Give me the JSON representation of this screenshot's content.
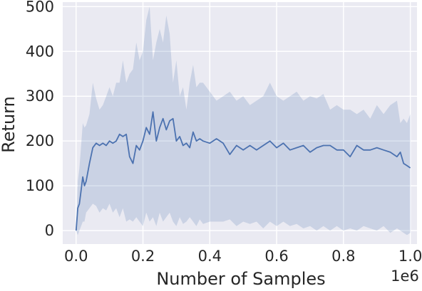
{
  "chart_data": {
    "type": "line",
    "title": "",
    "xlabel": "Number of Samples",
    "ylabel": "Return",
    "x_offset_label": "1e6",
    "xlim": [
      -0.04,
      1.02
    ],
    "ylim": [
      -30,
      510
    ],
    "x_ticks": [
      0.0,
      0.2,
      0.4,
      0.6,
      0.8,
      1.0
    ],
    "x_tick_labels": [
      "0.0",
      "0.2",
      "0.4",
      "0.6",
      "0.8",
      "1.0"
    ],
    "y_ticks": [
      0,
      100,
      200,
      300,
      400,
      500
    ],
    "y_tick_labels": [
      "0",
      "100",
      "200",
      "300",
      "400",
      "500"
    ],
    "grid": true,
    "legend": "none",
    "colors": {
      "background": "#eaeaf2",
      "grid": "#ffffff",
      "line": "#4c72b0",
      "band": "#4c72b0"
    },
    "series": [
      {
        "x": [
          0.0,
          0.005,
          0.01,
          0.015,
          0.02,
          0.025,
          0.03,
          0.04,
          0.05,
          0.06,
          0.07,
          0.08,
          0.09,
          0.1,
          0.11,
          0.12,
          0.13,
          0.14,
          0.15,
          0.16,
          0.17,
          0.18,
          0.19,
          0.2,
          0.21,
          0.22,
          0.23,
          0.24,
          0.25,
          0.26,
          0.27,
          0.28,
          0.29,
          0.3,
          0.31,
          0.32,
          0.33,
          0.34,
          0.35,
          0.36,
          0.37,
          0.38,
          0.4,
          0.42,
          0.44,
          0.46,
          0.48,
          0.5,
          0.52,
          0.54,
          0.56,
          0.58,
          0.6,
          0.62,
          0.64,
          0.66,
          0.68,
          0.7,
          0.72,
          0.74,
          0.76,
          0.78,
          0.8,
          0.82,
          0.84,
          0.86,
          0.88,
          0.9,
          0.92,
          0.94,
          0.96,
          0.97,
          0.98,
          0.99,
          1.0
        ],
        "y": [
          0,
          50,
          60,
          90,
          120,
          100,
          110,
          150,
          185,
          195,
          190,
          195,
          190,
          200,
          195,
          200,
          215,
          210,
          215,
          165,
          150,
          190,
          180,
          200,
          230,
          215,
          265,
          200,
          230,
          250,
          225,
          245,
          250,
          200,
          210,
          190,
          195,
          185,
          220,
          200,
          205,
          200,
          195,
          205,
          195,
          170,
          190,
          180,
          190,
          180,
          190,
          200,
          185,
          195,
          180,
          185,
          190,
          175,
          185,
          190,
          190,
          180,
          180,
          165,
          190,
          180,
          180,
          185,
          180,
          175,
          165,
          175,
          150,
          145,
          140
        ],
        "upper": [
          0,
          110,
          140,
          190,
          240,
          230,
          235,
          260,
          330,
          295,
          270,
          280,
          300,
          320,
          300,
          330,
          330,
          380,
          330,
          350,
          360,
          420,
          380,
          400,
          470,
          500,
          380,
          420,
          450,
          420,
          480,
          440,
          330,
          380,
          300,
          320,
          270,
          330,
          370,
          320,
          330,
          330,
          310,
          290,
          300,
          310,
          290,
          300,
          280,
          290,
          300,
          330,
          300,
          290,
          300,
          310,
          290,
          300,
          295,
          305,
          270,
          280,
          270,
          270,
          260,
          270,
          250,
          280,
          260,
          280,
          290,
          240,
          250,
          240,
          260
        ],
        "lower": [
          0,
          -10,
          0,
          10,
          20,
          20,
          40,
          50,
          60,
          55,
          40,
          50,
          45,
          60,
          40,
          50,
          30,
          50,
          20,
          25,
          20,
          30,
          20,
          10,
          40,
          20,
          30,
          10,
          40,
          20,
          30,
          40,
          20,
          10,
          30,
          15,
          20,
          30,
          20,
          10,
          25,
          15,
          20,
          20,
          20,
          25,
          10,
          20,
          15,
          20,
          5,
          20,
          10,
          20,
          10,
          15,
          5,
          10,
          0,
          10,
          0,
          10,
          0,
          5,
          0,
          10,
          5,
          0,
          10,
          -5,
          5,
          0,
          -5,
          -10,
          -5
        ]
      }
    ]
  }
}
